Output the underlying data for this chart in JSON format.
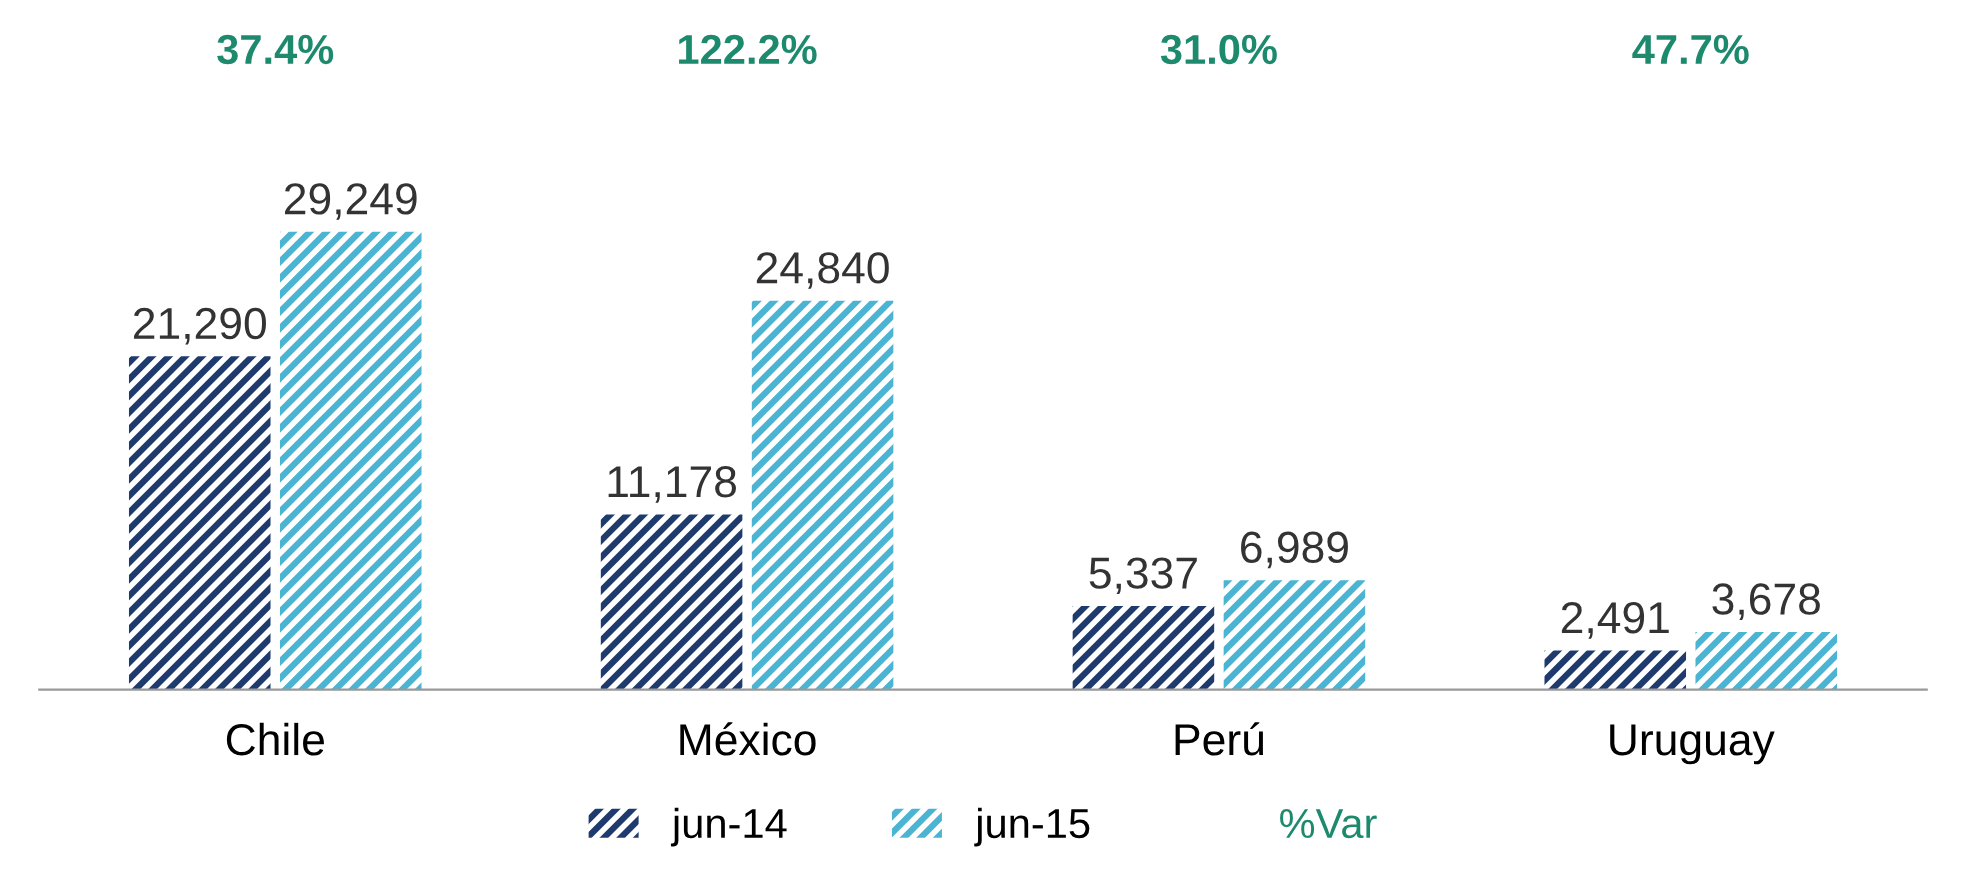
{
  "chart_data": {
    "type": "bar",
    "categories": [
      "Chile",
      "México",
      "Perú",
      "Uruguay"
    ],
    "series": [
      {
        "name": "jun-14",
        "color": "#1f3b6e",
        "values": [
          21290,
          11178,
          5337,
          2491
        ],
        "value_labels": [
          "21,290",
          "11,178",
          "5,337",
          "2,491"
        ]
      },
      {
        "name": "jun-15",
        "color": "#4bb4d2",
        "values": [
          29249,
          24840,
          6989,
          3678
        ],
        "value_labels": [
          "29,249",
          "24,840",
          "6,989",
          "3,678"
        ]
      }
    ],
    "legend": "bottom",
    "legend_title": "%Var",
    "grid": false,
    "annotations": [
      "37.4%",
      "122.2%",
      "31.0%",
      "47.7%"
    ]
  }
}
